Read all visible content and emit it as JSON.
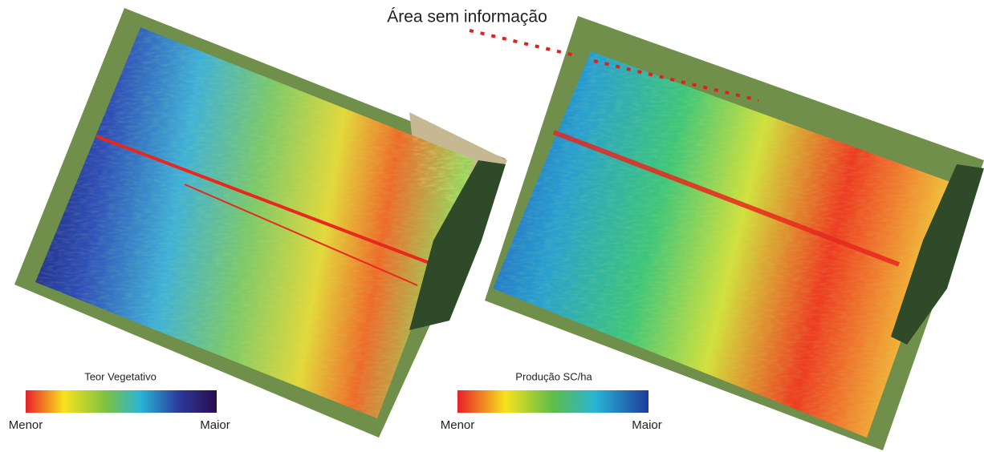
{
  "annotation": "Área sem informação",
  "left_map": {
    "legend": {
      "title": "Teor Vegetativo",
      "min_label": "Menor",
      "max_label": "Maior"
    }
  },
  "right_map": {
    "legend": {
      "title": "Produção SC/ha",
      "min_label": "Menor",
      "max_label": "Maior"
    }
  }
}
